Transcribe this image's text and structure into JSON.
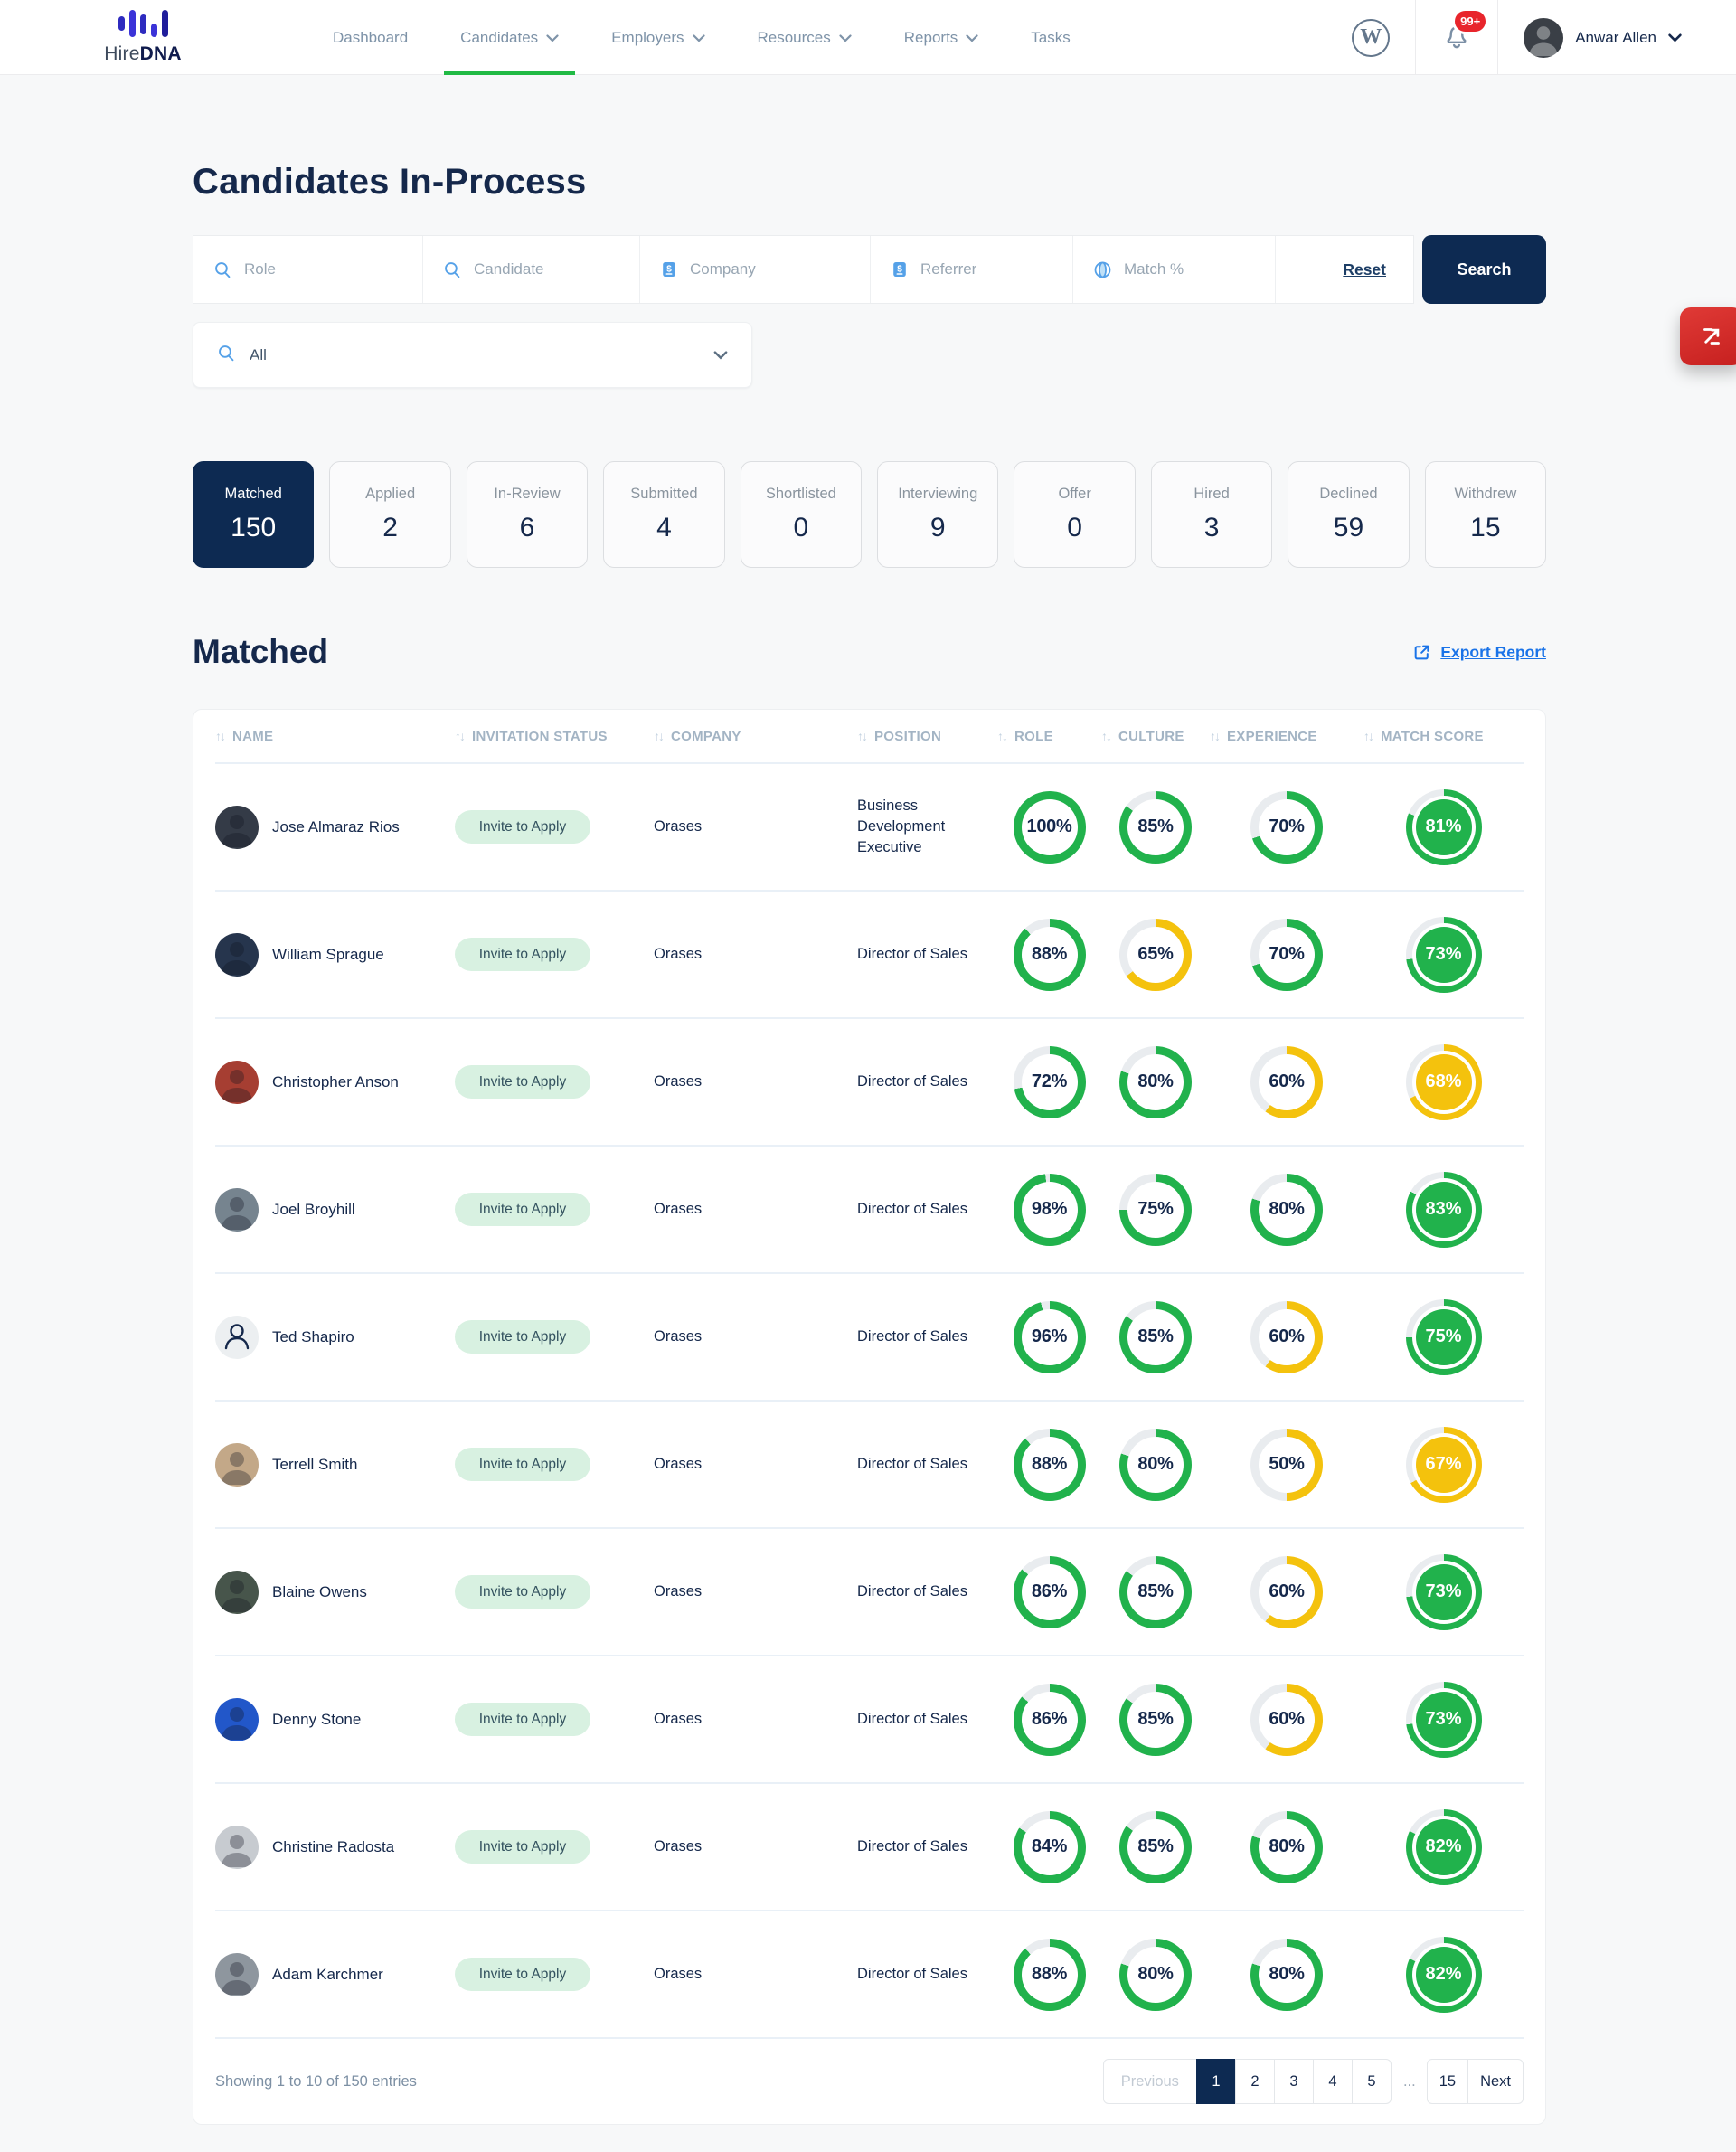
{
  "brand": {
    "name_light": "Hire",
    "name_bold": "DNA"
  },
  "nav": {
    "items": [
      {
        "label": "Dashboard",
        "dropdown": false,
        "active": false
      },
      {
        "label": "Candidates",
        "dropdown": true,
        "active": true
      },
      {
        "label": "Employers",
        "dropdown": true,
        "active": false
      },
      {
        "label": "Resources",
        "dropdown": true,
        "active": false
      },
      {
        "label": "Reports",
        "dropdown": true,
        "active": false
      },
      {
        "label": "Tasks",
        "dropdown": false,
        "active": false
      }
    ]
  },
  "notifications": {
    "badge": "99+"
  },
  "user": {
    "name": "Anwar Allen"
  },
  "icons": {
    "wordpress_glyph": "W",
    "sort_glyph": "↑↓"
  },
  "page": {
    "title": "Candidates In-Process"
  },
  "filters": {
    "fields": [
      {
        "placeholder": "Role",
        "icon": "search"
      },
      {
        "placeholder": "Candidate",
        "icon": "search"
      },
      {
        "placeholder": "Company",
        "icon": "directory"
      },
      {
        "placeholder": "Referrer",
        "icon": "directory"
      },
      {
        "placeholder": "Match %",
        "icon": "globe"
      }
    ],
    "reset_label": "Reset",
    "search_label": "Search",
    "keyword": {
      "value": "All",
      "icon": "search"
    }
  },
  "status_tabs": [
    {
      "label": "Matched",
      "count": "150",
      "active": true
    },
    {
      "label": "Applied",
      "count": "2",
      "active": false
    },
    {
      "label": "In-Review",
      "count": "6",
      "active": false
    },
    {
      "label": "Submitted",
      "count": "4",
      "active": false
    },
    {
      "label": "Shortlisted",
      "count": "0",
      "active": false
    },
    {
      "label": "Interviewing",
      "count": "9",
      "active": false
    },
    {
      "label": "Offer",
      "count": "0",
      "active": false
    },
    {
      "label": "Hired",
      "count": "3",
      "active": false
    },
    {
      "label": "Declined",
      "count": "59",
      "active": false
    },
    {
      "label": "Withdrew",
      "count": "15",
      "active": false
    }
  ],
  "section": {
    "title": "Matched",
    "export_label": "Export Report"
  },
  "table": {
    "columns": [
      "NAME",
      "INVITATION STATUS",
      "COMPANY",
      "POSITION",
      "ROLE",
      "CULTURE",
      "EXPERIENCE",
      "MATCH SCORE"
    ],
    "rows": [
      {
        "name": "Jose Almaraz Rios",
        "invitation_status": "Invite to Apply",
        "company": "Orases",
        "position": "Business Development Executive",
        "role": 100,
        "culture": 85,
        "experience": 70,
        "match_score": 81,
        "avatar": {
          "style": "photo",
          "color": "#343b47"
        }
      },
      {
        "name": "William Sprague",
        "invitation_status": "Invite to Apply",
        "company": "Orases",
        "position": "Director of Sales",
        "role": 88,
        "culture": 65,
        "experience": 70,
        "match_score": 73,
        "avatar": {
          "style": "photo",
          "color": "#26354d"
        }
      },
      {
        "name": "Christopher Anson",
        "invitation_status": "Invite to Apply",
        "company": "Orases",
        "position": "Director of Sales",
        "role": 72,
        "culture": 80,
        "experience": 60,
        "match_score": 68,
        "avatar": {
          "style": "photo",
          "color": "#a63e32"
        }
      },
      {
        "name": "Joel Broyhill",
        "invitation_status": "Invite to Apply",
        "company": "Orases",
        "position": "Director of Sales",
        "role": 98,
        "culture": 75,
        "experience": 80,
        "match_score": 83,
        "avatar": {
          "style": "photo",
          "color": "#76848f"
        }
      },
      {
        "name": "Ted Shapiro",
        "invitation_status": "Invite to Apply",
        "company": "Orases",
        "position": "Director of Sales",
        "role": 96,
        "culture": 85,
        "experience": 60,
        "match_score": 75,
        "avatar": {
          "style": "placeholder"
        }
      },
      {
        "name": "Terrell Smith",
        "invitation_status": "Invite to Apply",
        "company": "Orases",
        "position": "Director of Sales",
        "role": 88,
        "culture": 80,
        "experience": 50,
        "match_score": 67,
        "avatar": {
          "style": "photo",
          "color": "#c3a888"
        }
      },
      {
        "name": "Blaine Owens",
        "invitation_status": "Invite to Apply",
        "company": "Orases",
        "position": "Director of Sales",
        "role": 86,
        "culture": 85,
        "experience": 60,
        "match_score": 73,
        "avatar": {
          "style": "photo",
          "color": "#47554b"
        }
      },
      {
        "name": "Denny Stone",
        "invitation_status": "Invite to Apply",
        "company": "Orases",
        "position": "Director of Sales",
        "role": 86,
        "culture": 85,
        "experience": 60,
        "match_score": 73,
        "avatar": {
          "style": "photo",
          "color": "#2257c9"
        }
      },
      {
        "name": "Christine Radosta",
        "invitation_status": "Invite to Apply",
        "company": "Orases",
        "position": "Director of Sales",
        "role": 84,
        "culture": 85,
        "experience": 80,
        "match_score": 82,
        "avatar": {
          "style": "photo",
          "color": "#c7cbd0"
        }
      },
      {
        "name": "Adam Karchmer",
        "invitation_status": "Invite to Apply",
        "company": "Orases",
        "position": "Director of Sales",
        "role": 88,
        "culture": 80,
        "experience": 80,
        "match_score": 82,
        "avatar": {
          "style": "photo",
          "color": "#8e969e"
        }
      }
    ]
  },
  "pagination": {
    "summary": "Showing 1 to 10 of 150 entries",
    "items": [
      {
        "label": "Previous",
        "kind": "prev",
        "active": false
      },
      {
        "label": "1",
        "kind": "page",
        "active": true
      },
      {
        "label": "2",
        "kind": "page",
        "active": false
      },
      {
        "label": "3",
        "kind": "page",
        "active": false
      },
      {
        "label": "4",
        "kind": "page",
        "active": false
      },
      {
        "label": "5",
        "kind": "page",
        "active": false
      },
      {
        "label": "...",
        "kind": "ellipsis",
        "active": false
      },
      {
        "label": "15",
        "kind": "page",
        "active": false
      },
      {
        "label": "Next",
        "kind": "next",
        "active": false
      }
    ]
  },
  "theme": {
    "navy": "#0d2a52",
    "green": "#21b24c",
    "yellow": "#f4c20d",
    "ring_track": "#e9ecef",
    "link_blue": "#1a73e8",
    "accent_green": "#21ba45",
    "pill_bg": "#d8f1e1",
    "badge_red": "#e8252c",
    "color_threshold": 70
  }
}
